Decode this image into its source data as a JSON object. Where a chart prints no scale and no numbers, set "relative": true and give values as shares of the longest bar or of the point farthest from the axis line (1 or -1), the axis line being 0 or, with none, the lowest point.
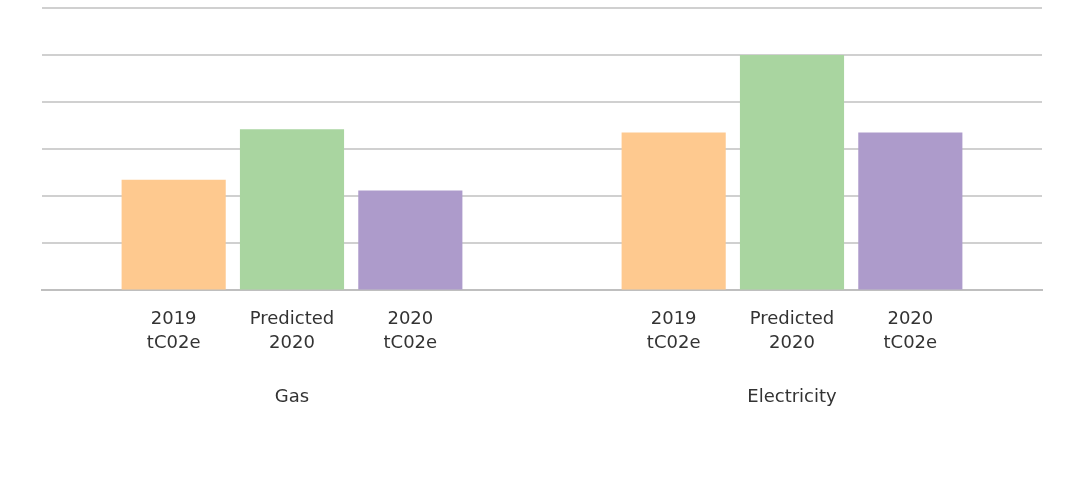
{
  "chart_data": {
    "type": "bar",
    "relative": true,
    "grid": "y",
    "legend": false,
    "categories": [
      "Gas",
      "Electricity"
    ],
    "series": [
      {
        "name": "2019\ntC02e",
        "color": "#fec98f",
        "values": [
          0.47,
          0.671
        ]
      },
      {
        "name": "Predicted\n2020",
        "color": "#a9d5a0",
        "values": [
          0.685,
          1
        ]
      },
      {
        "name": "2020\ntC02e",
        "color": "#ad9bcb",
        "values": [
          0.424,
          0.671
        ]
      }
    ]
  }
}
